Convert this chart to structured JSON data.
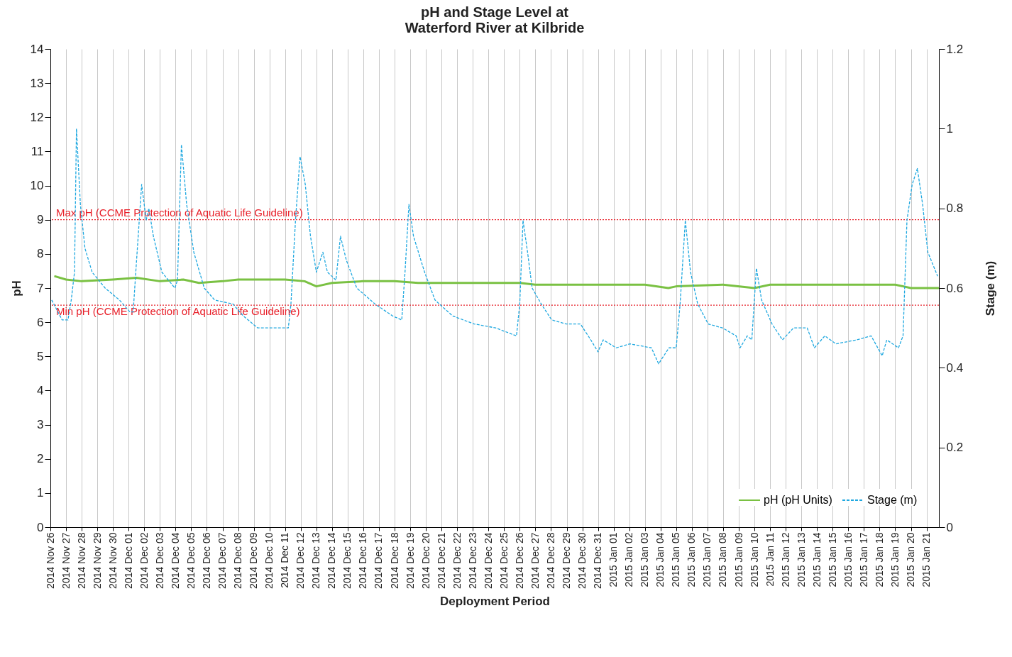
{
  "chart_data": {
    "type": "line",
    "title": "pH and Stage Level at\nWaterford River at Kilbride",
    "xlabel": "Deployment Period",
    "ylabel": "pH",
    "y2label": "Stage (m)",
    "xlim": [
      "2014-11-26",
      "2015-01-21T19:00"
    ],
    "xticks": [
      {
        "value": "2014-11-26",
        "label": "2014 Nov 26"
      },
      {
        "value": "2014-11-27",
        "label": "2014 Nov 27"
      },
      {
        "value": "2014-11-28",
        "label": "2014 Nov 28"
      },
      {
        "value": "2014-11-29",
        "label": "2014 Nov 29"
      },
      {
        "value": "2014-11-30",
        "label": "2014 Nov 30"
      },
      {
        "value": "2014-12-01",
        "label": "2014 Dec 01"
      },
      {
        "value": "2014-12-02",
        "label": "2014 Dec 02"
      },
      {
        "value": "2014-12-03",
        "label": "2014 Dec 03"
      },
      {
        "value": "2014-12-04",
        "label": "2014 Dec 04"
      },
      {
        "value": "2014-12-05",
        "label": "2014 Dec 05"
      },
      {
        "value": "2014-12-06",
        "label": "2014 Dec 06"
      },
      {
        "value": "2014-12-07",
        "label": "2014 Dec 07"
      },
      {
        "value": "2014-12-08",
        "label": "2014 Dec 08"
      },
      {
        "value": "2014-12-09",
        "label": "2014 Dec 09"
      },
      {
        "value": "2014-12-10",
        "label": "2014 Dec 10"
      },
      {
        "value": "2014-12-11",
        "label": "2014 Dec 11"
      },
      {
        "value": "2014-12-12",
        "label": "2014 Dec 12"
      },
      {
        "value": "2014-12-13",
        "label": "2014 Dec 13"
      },
      {
        "value": "2014-12-14",
        "label": "2014 Dec 14"
      },
      {
        "value": "2014-12-15",
        "label": "2014 Dec 15"
      },
      {
        "value": "2014-12-16",
        "label": "2014 Dec 16"
      },
      {
        "value": "2014-12-17",
        "label": "2014 Dec 17"
      },
      {
        "value": "2014-12-18",
        "label": "2014 Dec 18"
      },
      {
        "value": "2014-12-19",
        "label": "2014 Dec 19"
      },
      {
        "value": "2014-12-20",
        "label": "2014 Dec 20"
      },
      {
        "value": "2014-12-21",
        "label": "2014 Dec 21"
      },
      {
        "value": "2014-12-22",
        "label": "2014 Dec 22"
      },
      {
        "value": "2014-12-23",
        "label": "2014 Dec 23"
      },
      {
        "value": "2014-12-24",
        "label": "2014 Dec 24"
      },
      {
        "value": "2014-12-25",
        "label": "2014 Dec 25"
      },
      {
        "value": "2014-12-26",
        "label": "2014 Dec 26"
      },
      {
        "value": "2014-12-27",
        "label": "2014 Dec 27"
      },
      {
        "value": "2014-12-28",
        "label": "2014 Dec 28"
      },
      {
        "value": "2014-12-29",
        "label": "2014 Dec 29"
      },
      {
        "value": "2014-12-30",
        "label": "2014 Dec 30"
      },
      {
        "value": "2014-12-31",
        "label": "2014 Dec 31"
      },
      {
        "value": "2015-01-01",
        "label": "2015 Jan 01"
      },
      {
        "value": "2015-01-02",
        "label": "2015 Jan 02"
      },
      {
        "value": "2015-01-03",
        "label": "2015 Jan 03"
      },
      {
        "value": "2015-01-04",
        "label": "2015 Jan 04"
      },
      {
        "value": "2015-01-05",
        "label": "2015 Jan 05"
      },
      {
        "value": "2015-01-06",
        "label": "2015 Jan 06"
      },
      {
        "value": "2015-01-07",
        "label": "2015 Jan 07"
      },
      {
        "value": "2015-01-08",
        "label": "2015 Jan 08"
      },
      {
        "value": "2015-01-09",
        "label": "2015 Jan 09"
      },
      {
        "value": "2015-01-10",
        "label": "2015 Jan 10"
      },
      {
        "value": "2015-01-11",
        "label": "2015 Jan 11"
      },
      {
        "value": "2015-01-12",
        "label": "2015 Jan 12"
      },
      {
        "value": "2015-01-13",
        "label": "2015 Jan 13"
      },
      {
        "value": "2015-01-14",
        "label": "2015 Jan 14"
      },
      {
        "value": "2015-01-15",
        "label": "2015 Jan 15"
      },
      {
        "value": "2015-01-16",
        "label": "2015 Jan 16"
      },
      {
        "value": "2015-01-17",
        "label": "2015 Jan 17"
      },
      {
        "value": "2015-01-18",
        "label": "2015 Jan 18"
      },
      {
        "value": "2015-01-19",
        "label": "2015 Jan 19"
      },
      {
        "value": "2015-01-20",
        "label": "2015 Jan 20"
      },
      {
        "value": "2015-01-21",
        "label": "2015 Jan 21"
      }
    ],
    "ylim": [
      0,
      14
    ],
    "yticks": [
      0,
      1,
      2,
      3,
      4,
      5,
      6,
      7,
      8,
      9,
      10,
      11,
      12,
      13,
      14
    ],
    "y2lim": [
      0,
      1.2
    ],
    "y2ticks": [
      0,
      0.2,
      0.4,
      0.6,
      0.8,
      1,
      1.2
    ],
    "grid": "x",
    "legend": "bottom right",
    "marker": "none",
    "ref_lines": [
      {
        "axis": "y",
        "value": 9,
        "label": "Max pH  (CCME  Protection of Aquatic Life Guideline)",
        "color": "#e8202a",
        "line_style": "dotted"
      },
      {
        "axis": "y",
        "value": 6.5,
        "label": "Min pH  (CCME  Protection of Aquatic Life Guideline)",
        "color": "#e8202a",
        "line_style": "dotted"
      }
    ],
    "series": [
      {
        "name": "pH (pH Units)",
        "color": "#7ac143",
        "line_style": "solid",
        "x": [
          "2014-11-26T06:00",
          "2014-11-27T00:00",
          "2014-11-28T00:00",
          "2014-11-30T00:00",
          "2014-12-01T12:00",
          "2014-12-03T00:00",
          "2014-12-04T12:00",
          "2014-12-05T12:00",
          "2014-12-07T00:00",
          "2014-12-08T00:00",
          "2014-12-10T00:00",
          "2014-12-11T00:00",
          "2014-12-12T06:00",
          "2014-12-13T00:00",
          "2014-12-14T00:00",
          "2014-12-16T00:00",
          "2014-12-18T00:00",
          "2014-12-19T12:00",
          "2014-12-22T00:00",
          "2014-12-26T00:00",
          "2014-12-27T00:00",
          "2014-12-29T00:00",
          "2014-12-31T00:00",
          "2015-01-03T00:00",
          "2015-01-04T12:00",
          "2015-01-05T00:00",
          "2015-01-08T00:00",
          "2015-01-10T00:00",
          "2015-01-11T00:00",
          "2015-01-14T00:00",
          "2015-01-17T00:00",
          "2015-01-19T00:00",
          "2015-01-20T00:00",
          "2015-01-21T19:00"
        ],
        "values": [
          7.35,
          7.25,
          7.2,
          7.25,
          7.3,
          7.2,
          7.25,
          7.15,
          7.2,
          7.25,
          7.25,
          7.25,
          7.2,
          7.05,
          7.15,
          7.2,
          7.2,
          7.15,
          7.15,
          7.15,
          7.1,
          7.1,
          7.1,
          7.1,
          7.0,
          7.05,
          7.1,
          7.0,
          7.1,
          7.1,
          7.1,
          7.1,
          7.0,
          7.0
        ]
      },
      {
        "name": "Stage (m)",
        "color": "#1fa8e0",
        "line_style": "dashed",
        "axis": "y2",
        "x": [
          "2014-11-26T02:00",
          "2014-11-26T18:00",
          "2014-11-27T03:00",
          "2014-11-27T08:00",
          "2014-11-27T13:00",
          "2014-11-27T16:00",
          "2014-11-27T22:00",
          "2014-11-28T05:00",
          "2014-11-28T16:00",
          "2014-11-29T12:00",
          "2014-11-30T10:00",
          "2014-12-01T02:00",
          "2014-12-01T07:00",
          "2014-12-01T11:00",
          "2014-12-01T20:00",
          "2014-12-02T03:00",
          "2014-12-02T07:00",
          "2014-12-02T14:00",
          "2014-12-03T03:00",
          "2014-12-03T23:00",
          "2014-12-04T03:00",
          "2014-12-04T09:00",
          "2014-12-04T17:00",
          "2014-12-05T04:00",
          "2014-12-05T20:00",
          "2014-12-06T12:00",
          "2014-12-07T16:00",
          "2014-12-08T08:00",
          "2014-12-09T06:00",
          "2014-12-10T09:00",
          "2014-12-11T05:00",
          "2014-12-11T09:00",
          "2014-12-11T16:00",
          "2014-12-11T23:00",
          "2014-12-12T07:00",
          "2014-12-12T15:00",
          "2014-12-13T00:00",
          "2014-12-13T10:00",
          "2014-12-13T17:00",
          "2014-12-14T06:00",
          "2014-12-14T13:00",
          "2014-12-14T22:00",
          "2014-12-15T14:00",
          "2014-12-16T18:00",
          "2014-12-17T21:00",
          "2014-12-18T11:00",
          "2014-12-18T16:00",
          "2014-12-18T22:00",
          "2014-12-19T05:00",
          "2014-12-19T22:00",
          "2014-12-20T14:00",
          "2014-12-21T17:00",
          "2014-12-23T02:00",
          "2014-12-24T11:00",
          "2014-12-25T19:00",
          "2014-12-26T00:00",
          "2014-12-26T05:00",
          "2014-12-26T12:00",
          "2014-12-26T19:00",
          "2014-12-27T09:00",
          "2014-12-28T01:00",
          "2014-12-28T23:00",
          "2014-12-29T21:00",
          "2014-12-30T13:00",
          "2014-12-31T00:00",
          "2014-12-31T08:00",
          "2015-01-01T04:00",
          "2015-01-02T01:00",
          "2015-01-03T10:00",
          "2015-01-03T21:00",
          "2015-01-04T13:00",
          "2015-01-05T00:00",
          "2015-01-05T06:00",
          "2015-01-05T14:00",
          "2015-01-05T22:00",
          "2015-01-06T09:00",
          "2015-01-07T01:00",
          "2015-01-07T23:00",
          "2015-01-08T20:00",
          "2015-01-09T02:00",
          "2015-01-09T13:00",
          "2015-01-09T20:00",
          "2015-01-10T03:00",
          "2015-01-10T11:00",
          "2015-01-11T03:00",
          "2015-01-11T19:00",
          "2015-01-12T12:00",
          "2015-01-13T09:00",
          "2015-01-13T20:00",
          "2015-01-14T12:00",
          "2015-01-15T05:00",
          "2015-01-16T13:00",
          "2015-01-17T11:00",
          "2015-01-18T04:00",
          "2015-01-18T11:00",
          "2015-01-19T05:00",
          "2015-01-19T12:00",
          "2015-01-19T18:00",
          "2015-01-20T02:00",
          "2015-01-20T10:00",
          "2015-01-20T18:00",
          "2015-01-21T02:00",
          "2015-01-21T17:00"
        ],
        "values": [
          0.57,
          0.52,
          0.52,
          0.57,
          0.64,
          1.0,
          0.81,
          0.7,
          0.64,
          0.6,
          0.57,
          0.54,
          0.54,
          0.64,
          0.86,
          0.77,
          0.8,
          0.73,
          0.64,
          0.6,
          0.62,
          0.96,
          0.81,
          0.69,
          0.6,
          0.57,
          0.56,
          0.53,
          0.5,
          0.5,
          0.5,
          0.56,
          0.77,
          0.93,
          0.86,
          0.73,
          0.64,
          0.69,
          0.64,
          0.62,
          0.73,
          0.67,
          0.6,
          0.56,
          0.53,
          0.52,
          0.64,
          0.81,
          0.73,
          0.64,
          0.57,
          0.53,
          0.51,
          0.5,
          0.48,
          0.56,
          0.77,
          0.69,
          0.6,
          0.56,
          0.52,
          0.51,
          0.51,
          0.47,
          0.44,
          0.47,
          0.45,
          0.46,
          0.45,
          0.41,
          0.45,
          0.45,
          0.56,
          0.77,
          0.64,
          0.56,
          0.51,
          0.5,
          0.48,
          0.45,
          0.48,
          0.47,
          0.65,
          0.57,
          0.51,
          0.47,
          0.5,
          0.5,
          0.45,
          0.48,
          0.46,
          0.47,
          0.48,
          0.43,
          0.47,
          0.45,
          0.48,
          0.77,
          0.86,
          0.9,
          0.81,
          0.69,
          0.63
        ]
      }
    ]
  }
}
